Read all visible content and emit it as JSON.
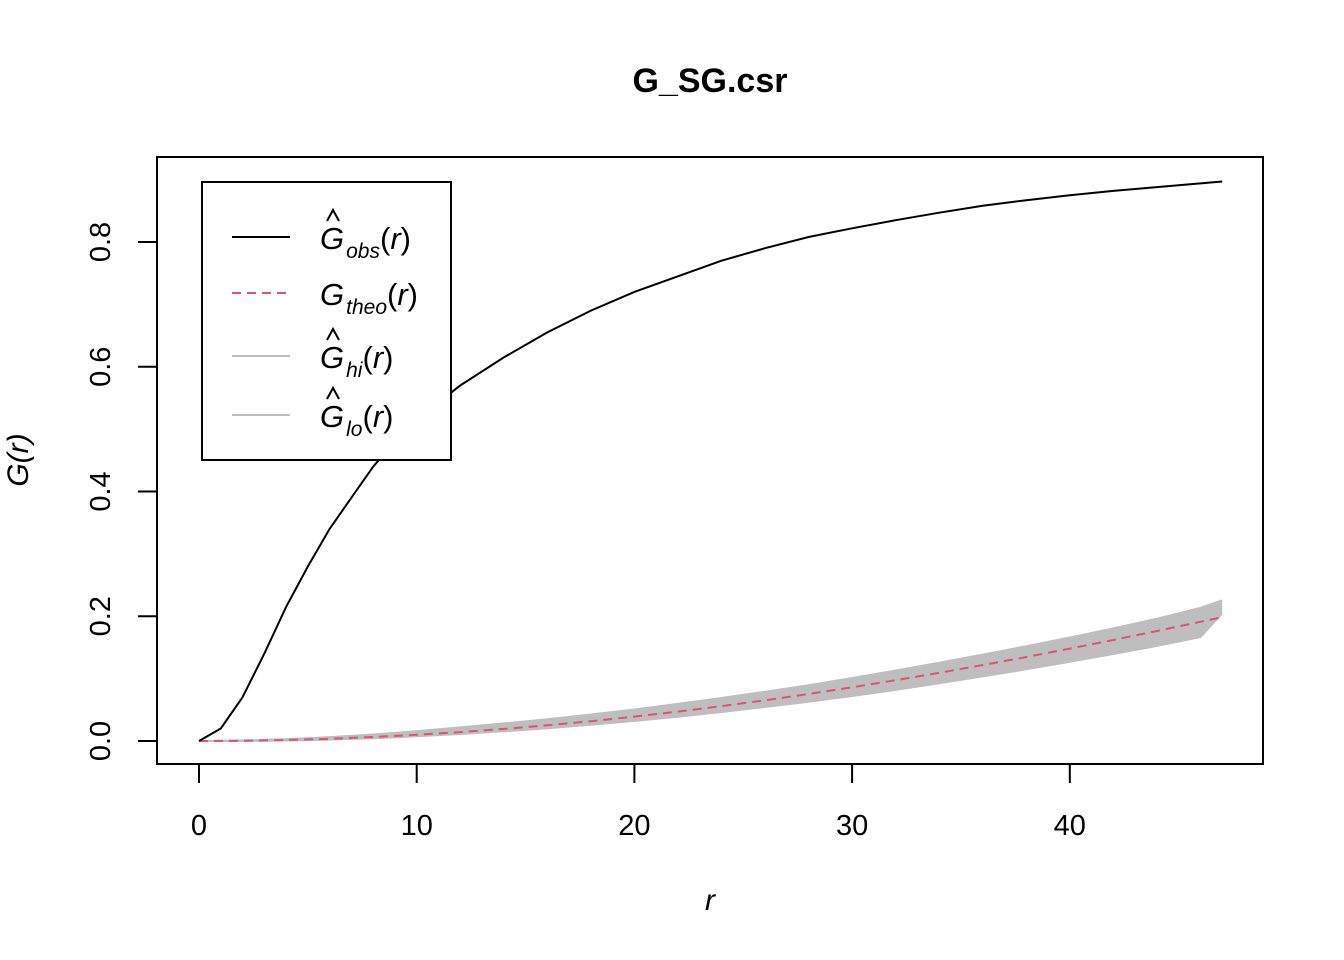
{
  "chart_data": {
    "type": "line",
    "title": "G_SG.csr",
    "xlabel": "r",
    "ylabel": "G(r)",
    "xlim": [
      0,
      47
    ],
    "ylim": [
      0,
      0.9
    ],
    "xticks": [
      "0",
      "10",
      "20",
      "30",
      "40"
    ],
    "yticks": [
      "0.0",
      "0.2",
      "0.4",
      "0.6",
      "0.8"
    ],
    "grid": false,
    "legend_position": "top-left",
    "x": [
      0,
      1,
      2,
      3,
      4,
      5,
      6,
      7,
      8,
      9,
      10,
      12,
      14,
      16,
      18,
      20,
      22,
      24,
      26,
      28,
      30,
      32,
      34,
      36,
      38,
      40,
      42,
      44,
      46,
      47
    ],
    "series": [
      {
        "name_main": "G",
        "name_sub": "obs",
        "hat": true,
        "color": "#000000",
        "dash": "solid",
        "values": [
          0,
          0.02,
          0.07,
          0.14,
          0.215,
          0.28,
          0.34,
          0.39,
          0.44,
          0.48,
          0.515,
          0.57,
          0.615,
          0.655,
          0.69,
          0.72,
          0.745,
          0.77,
          0.79,
          0.808,
          0.822,
          0.835,
          0.847,
          0.858,
          0.867,
          0.875,
          0.882,
          0.888,
          0.894,
          0.897
        ]
      },
      {
        "name_main": "G",
        "name_sub": "theo",
        "hat": false,
        "color": "#DF536B",
        "dash": "dashed",
        "values": [
          0,
          0.0001,
          0.0004,
          0.0009,
          0.0016,
          0.0025,
          0.0036,
          0.005,
          0.0064,
          0.0081,
          0.01,
          0.0143,
          0.0194,
          0.0252,
          0.0318,
          0.0391,
          0.0472,
          0.0559,
          0.0653,
          0.0754,
          0.0861,
          0.0974,
          0.1093,
          0.1217,
          0.1347,
          0.1481,
          0.162,
          0.1763,
          0.1911,
          0.1985
        ]
      },
      {
        "name_main": "G",
        "name_sub": "hi",
        "hat": true,
        "color": "#BEBEBE",
        "dash": "solid",
        "values": [
          0,
          0.0003,
          0.0009,
          0.0018,
          0.003,
          0.0045,
          0.0062,
          0.0082,
          0.0104,
          0.013,
          0.0158,
          0.0218,
          0.0282,
          0.035,
          0.0425,
          0.0505,
          0.0595,
          0.069,
          0.079,
          0.0895,
          0.101,
          0.113,
          0.1255,
          0.1385,
          0.152,
          0.166,
          0.1805,
          0.196,
          0.2135,
          0.2255
        ]
      },
      {
        "name_main": "G",
        "name_sub": "lo",
        "hat": true,
        "color": "#BEBEBE",
        "dash": "solid",
        "values": [
          0,
          0,
          0,
          0.0003,
          0.0008,
          0.0014,
          0.0022,
          0.0033,
          0.0045,
          0.006,
          0.0075,
          0.0112,
          0.0155,
          0.0205,
          0.026,
          0.0322,
          0.039,
          0.0465,
          0.0545,
          0.063,
          0.0722,
          0.082,
          0.0925,
          0.1035,
          0.115,
          0.127,
          0.1395,
          0.1525,
          0.1665,
          0.2045
        ]
      }
    ]
  }
}
